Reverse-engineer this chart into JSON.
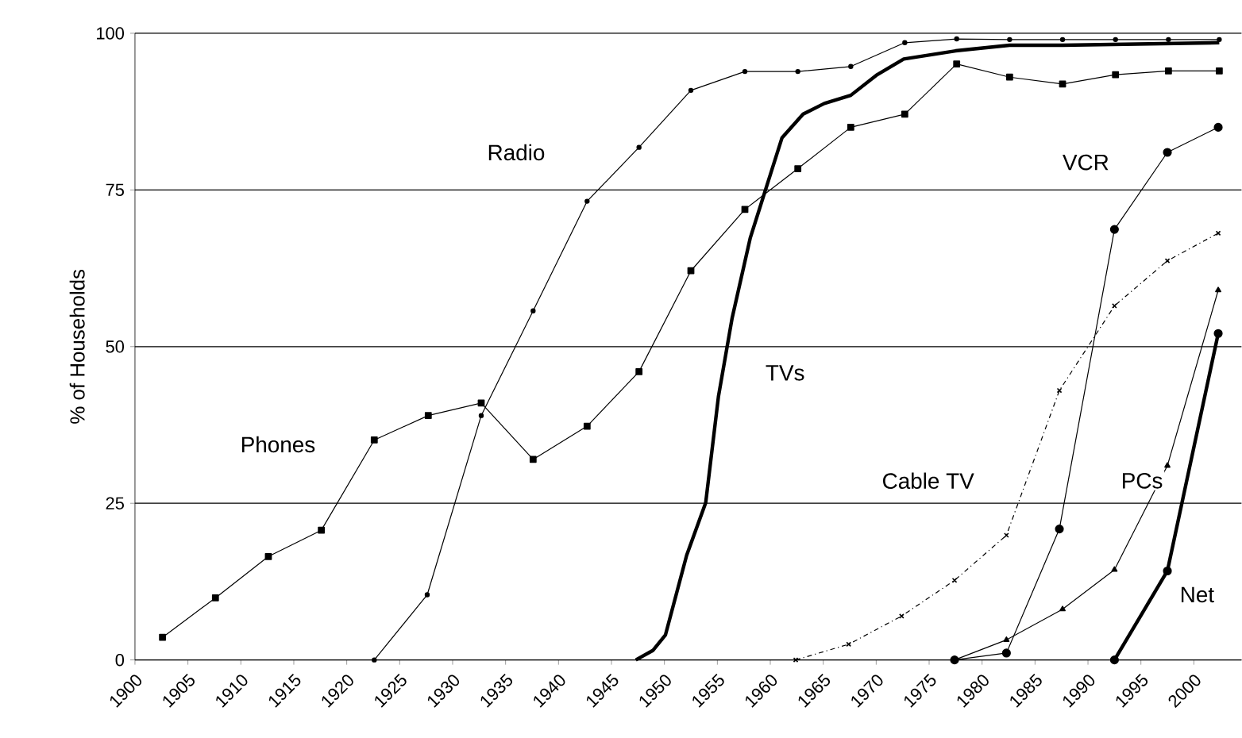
{
  "chart_data": {
    "type": "line",
    "ylabel": "% of Households",
    "xlim": [
      1900,
      2004.5
    ],
    "xticks": [
      1900,
      1905,
      1910,
      1915,
      1920,
      1925,
      1930,
      1935,
      1940,
      1945,
      1950,
      1955,
      1960,
      1965,
      1970,
      1975,
      1980,
      1985,
      1990,
      1995,
      2000
    ],
    "ylim": [
      0,
      100
    ],
    "yticks": [
      0,
      25,
      50,
      75,
      100
    ],
    "grid": "y",
    "series": [
      {
        "name": "Phones",
        "color": "#000000",
        "marker": "square",
        "line_style": "solid",
        "x": [
          1902.6,
          1907.6,
          1912.6,
          1917.6,
          1922.6,
          1927.7,
          1932.7,
          1937.6,
          1942.7,
          1947.6,
          1952.5,
          1957.6,
          1962.6,
          1967.6,
          1972.7,
          1977.6,
          1982.6,
          1987.6,
          1992.6,
          1997.6,
          2002.4
        ],
        "values": [
          3.6,
          9.9,
          16.5,
          20.7,
          35.1,
          39.0,
          41.0,
          32.0,
          37.3,
          46.0,
          62.1,
          71.9,
          78.4,
          85.0,
          87.1,
          95.1,
          93.0,
          91.9,
          93.4,
          94.0,
          94.0
        ]
      },
      {
        "name": "Radio",
        "color": "#000000",
        "marker": "circle",
        "line_style": "solid",
        "x": [
          1922.6,
          1927.6,
          1932.7,
          1937.6,
          1942.7,
          1947.6,
          1952.5,
          1957.6,
          1962.6,
          1967.6,
          1972.7,
          1977.6,
          1982.6,
          1987.6,
          1992.6,
          1997.6,
          2002.4
        ],
        "values": [
          0,
          10.4,
          39.0,
          55.7,
          73.2,
          81.8,
          90.9,
          93.9,
          93.9,
          94.7,
          98.5,
          99.1,
          99,
          99,
          99,
          99,
          99
        ]
      },
      {
        "name": "TVs",
        "color": "#000000",
        "marker": "none",
        "line_style": "solid",
        "x": [
          1947.3,
          1948.9,
          1950.1,
          1952.1,
          1953.9,
          1955.1,
          1956.4,
          1958.1,
          1959.6,
          1961.1,
          1963.1,
          1965.1,
          1967.6,
          1970.1,
          1972.6,
          1977.5,
          1982.6,
          1987.6,
          2002.4
        ],
        "values": [
          0,
          1.5,
          4.0,
          16.7,
          25.1,
          42.0,
          54.6,
          67.3,
          75.3,
          83.3,
          87.1,
          88.8,
          90.1,
          93.4,
          95.9,
          97.2,
          98.1,
          98.1,
          98.5
        ]
      },
      {
        "name": "VCR",
        "color": "#000000",
        "marker": "circle",
        "line_style": "solid",
        "x": [
          1977.4,
          1982.3,
          1987.3,
          1992.5,
          1997.5,
          2002.3
        ],
        "values": [
          0,
          1.1,
          20.9,
          68.7,
          81.0,
          85.0
        ]
      },
      {
        "name": "Cable TV",
        "color": "#000000",
        "marker": "cross",
        "line_style": "dashed",
        "x": [
          1962.4,
          1967.4,
          1972.4,
          1977.4,
          1982.3,
          1987.3,
          1992.5,
          1997.5,
          2002.3
        ],
        "values": [
          0,
          2.5,
          7.0,
          12.7,
          19.9,
          43.0,
          56.5,
          63.7,
          68.1
        ]
      },
      {
        "name": "PCs",
        "color": "#000000",
        "marker": "triangle",
        "line_style": "solid",
        "x": [
          1977.4,
          1982.3,
          1987.6,
          1992.5,
          1997.5,
          2002.3
        ],
        "values": [
          0,
          3.2,
          8.1,
          14.4,
          31.0,
          59.0
        ]
      },
      {
        "name": "Net",
        "color": "#000000",
        "marker": "circle",
        "line_style": "solid",
        "x": [
          1992.5,
          1997.5,
          2002.3
        ],
        "values": [
          0,
          14.2,
          52.1
        ]
      }
    ]
  }
}
